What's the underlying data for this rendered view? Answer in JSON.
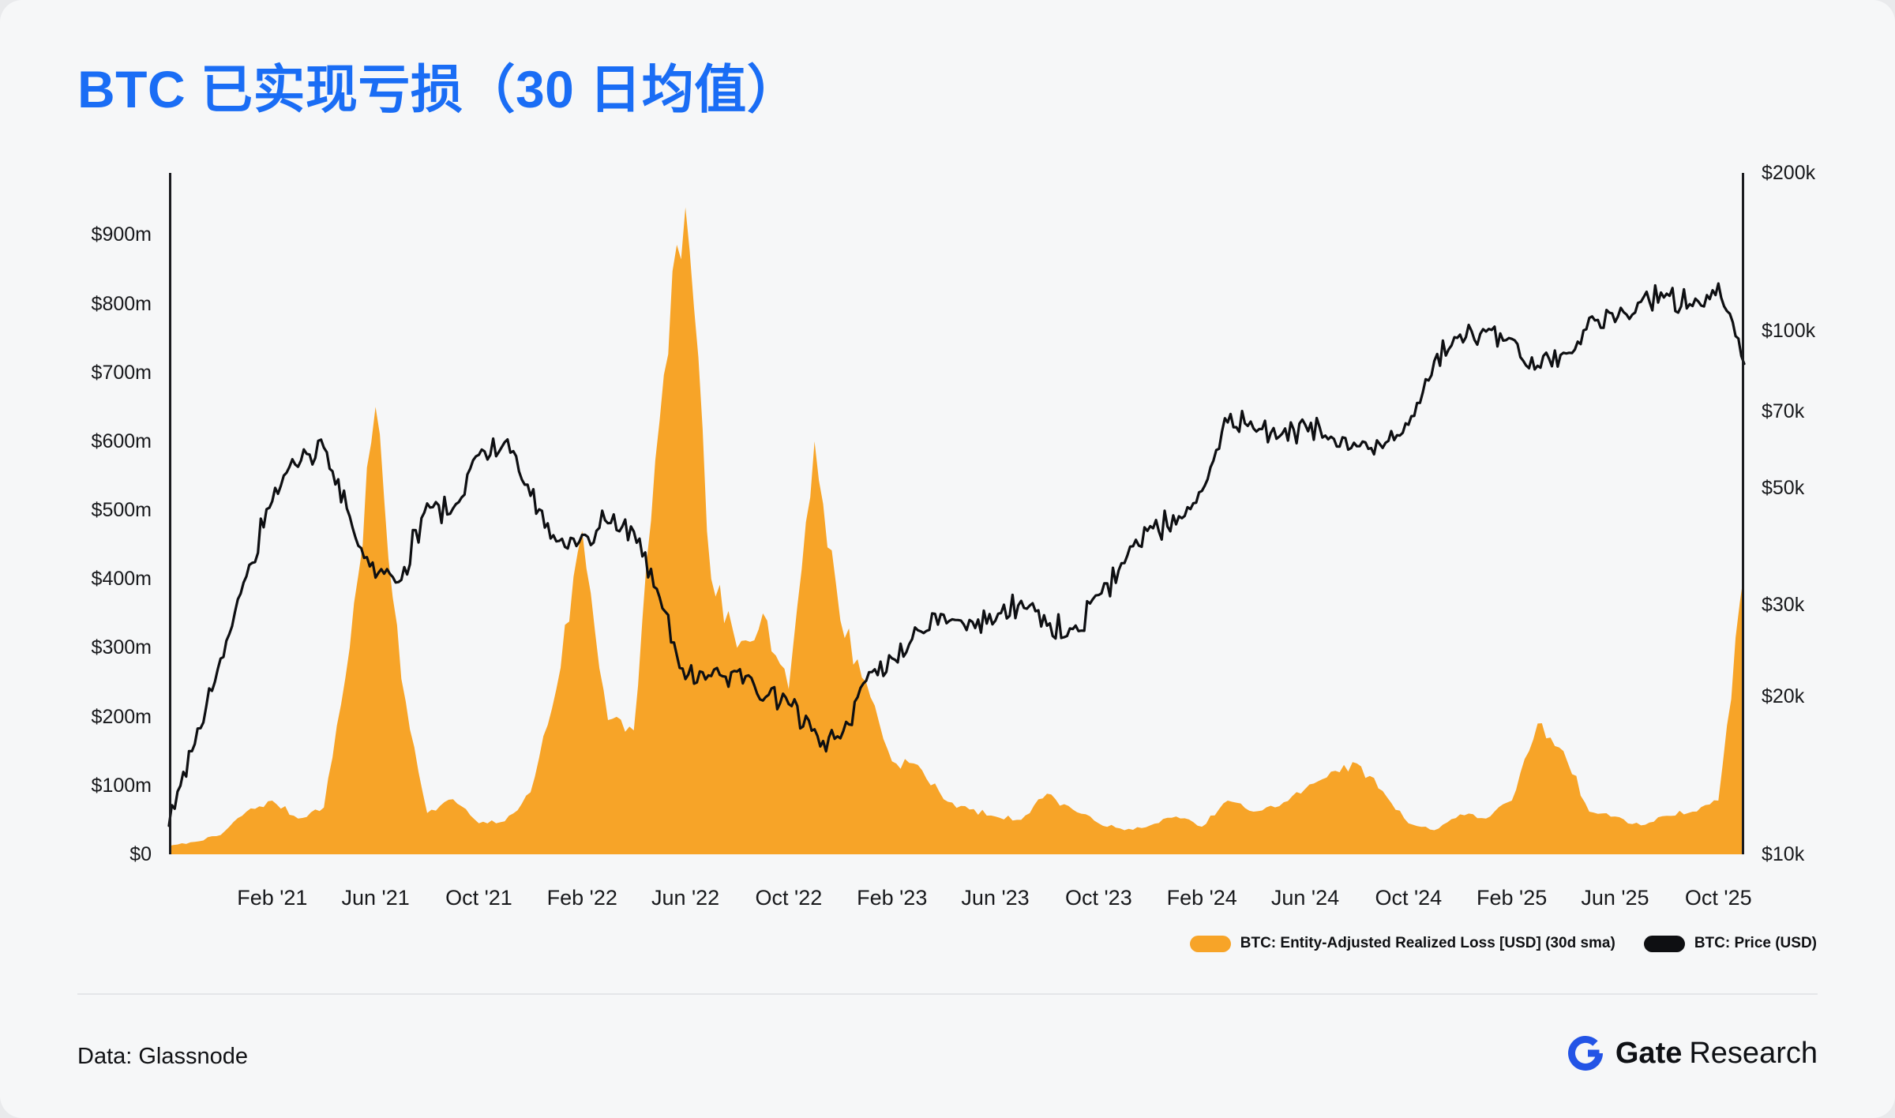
{
  "colors": {
    "title": "#1A6DF5",
    "loss": "#F7A428",
    "price": "#0E0F12",
    "axis_line": "#1A1B1F",
    "background": "#F6F7F8",
    "divider": "#E4E6E9",
    "text": "#15171A",
    "brand_blue": "#2354E6"
  },
  "header": {
    "title": "BTC 已实现亏损（30 日均值）"
  },
  "legend": {
    "items": [
      {
        "label": "BTC: Entity-Adjusted Realized Loss [USD] (30d sma)",
        "color": "#F7A428"
      },
      {
        "label": "BTC: Price (USD)",
        "color": "#0E0F12"
      }
    ]
  },
  "footer": {
    "source": "Data: Glassnode",
    "brand_bold": "Gate",
    "brand_regular": "Research"
  },
  "chart_data": {
    "type": "area+line",
    "title": "BTC 已实现亏损（30 日均值）",
    "grid": "off",
    "legend_position": "bottom-right",
    "months": [
      "2020-10",
      "2020-11",
      "2020-12",
      "2021-01",
      "2021-02",
      "2021-03",
      "2021-04",
      "2021-05",
      "2021-06",
      "2021-07",
      "2021-08",
      "2021-09",
      "2021-10",
      "2021-11",
      "2021-12",
      "2022-01",
      "2022-02",
      "2022-03",
      "2022-04",
      "2022-05",
      "2022-06",
      "2022-07",
      "2022-08",
      "2022-09",
      "2022-10",
      "2022-11",
      "2022-12",
      "2023-01",
      "2023-02",
      "2023-03",
      "2023-04",
      "2023-05",
      "2023-06",
      "2023-07",
      "2023-08",
      "2023-09",
      "2023-10",
      "2023-11",
      "2023-12",
      "2024-01",
      "2024-02",
      "2024-03",
      "2024-04",
      "2024-05",
      "2024-06",
      "2024-07",
      "2024-08",
      "2024-09",
      "2024-10",
      "2024-11",
      "2024-12",
      "2025-01",
      "2025-02",
      "2025-03",
      "2025-04",
      "2025-05",
      "2025-06",
      "2025-07",
      "2025-08",
      "2025-09",
      "2025-10",
      "2025-11"
    ],
    "x_ticks": [
      {
        "label": "Feb '21",
        "month": "2021-02"
      },
      {
        "label": "Jun '21",
        "month": "2021-06"
      },
      {
        "label": "Oct '21",
        "month": "2021-10"
      },
      {
        "label": "Feb '22",
        "month": "2022-02"
      },
      {
        "label": "Jun '22",
        "month": "2022-06"
      },
      {
        "label": "Oct '22",
        "month": "2022-10"
      },
      {
        "label": "Feb '23",
        "month": "2023-02"
      },
      {
        "label": "Jun '23",
        "month": "2023-06"
      },
      {
        "label": "Oct '23",
        "month": "2023-10"
      },
      {
        "label": "Feb '24",
        "month": "2024-02"
      },
      {
        "label": "Jun '24",
        "month": "2024-06"
      },
      {
        "label": "Oct '24",
        "month": "2024-10"
      },
      {
        "label": "Feb '25",
        "month": "2025-02"
      },
      {
        "label": "Jun '25",
        "month": "2025-06"
      },
      {
        "label": "Oct '25",
        "month": "2025-10"
      }
    ],
    "left_axis": {
      "title": "Realized Loss (USD millions)",
      "scale": "linear",
      "min": 0,
      "max": 990,
      "ticks": [
        {
          "value": 0,
          "label": "$0"
        },
        {
          "value": 100,
          "label": "$100m"
        },
        {
          "value": 200,
          "label": "$200m"
        },
        {
          "value": 300,
          "label": "$300m"
        },
        {
          "value": 400,
          "label": "$400m"
        },
        {
          "value": 500,
          "label": "$500m"
        },
        {
          "value": 600,
          "label": "$600m"
        },
        {
          "value": 700,
          "label": "$700m"
        },
        {
          "value": 800,
          "label": "$800m"
        },
        {
          "value": 900,
          "label": "$900m"
        }
      ]
    },
    "right_axis": {
      "title": "BTC Price (USD)",
      "scale": "log",
      "min": 10000,
      "max": 200000,
      "ticks": [
        {
          "value": 10000,
          "label": "$10k"
        },
        {
          "value": 20000,
          "label": "$20k"
        },
        {
          "value": 30000,
          "label": "$30k"
        },
        {
          "value": 50000,
          "label": "$50k"
        },
        {
          "value": 70000,
          "label": "$70k"
        },
        {
          "value": 100000,
          "label": "$100k"
        },
        {
          "value": 200000,
          "label": "$200k"
        }
      ]
    },
    "series": [
      {
        "name": "BTC: Entity-Adjusted Realized Loss [USD] (30d sma)",
        "type": "area",
        "axis": "left",
        "unit": "USD millions",
        "color": "#F7A428",
        "values": [
          12,
          18,
          28,
          62,
          78,
          52,
          68,
          300,
          650,
          255,
          60,
          80,
          45,
          48,
          90,
          240,
          470,
          195,
          180,
          630,
          940,
          400,
          300,
          350,
          240,
          600,
          340,
          250,
          135,
          130,
          80,
          65,
          55,
          50,
          88,
          65,
          45,
          35,
          42,
          55,
          40,
          78,
          62,
          70,
          95,
          120,
          132,
          92,
          45,
          35,
          58,
          52,
          78,
          190,
          150,
          62,
          55,
          42,
          56,
          62,
          78,
          410
        ]
      },
      {
        "name": "BTC: Price (USD)",
        "type": "line",
        "axis": "right",
        "unit": "USD",
        "color": "#0E0F12",
        "values": [
          11500,
          16500,
          23500,
          34500,
          48000,
          56000,
          60000,
          44000,
          34000,
          33500,
          46500,
          45000,
          58000,
          62000,
          49000,
          40000,
          40500,
          43500,
          41000,
          31000,
          22000,
          22000,
          22500,
          19500,
          19500,
          17000,
          16800,
          21500,
          23500,
          26500,
          29000,
          27500,
          28500,
          30000,
          27500,
          26500,
          31000,
          36500,
          42500,
          43000,
          50000,
          68000,
          65000,
          64000,
          66000,
          61500,
          59500,
          60500,
          66000,
          87000,
          98000,
          101000,
          95000,
          84000,
          89000,
          104000,
          106000,
          114000,
          117000,
          112000,
          121000,
          88000
        ]
      }
    ]
  }
}
